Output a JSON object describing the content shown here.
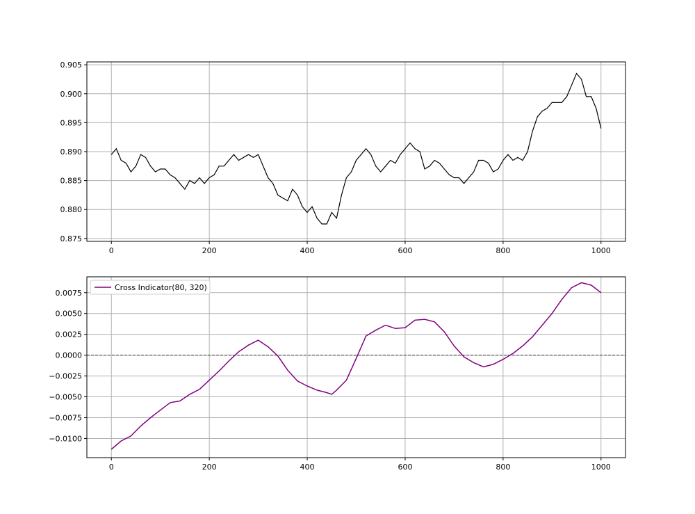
{
  "chart_data": [
    {
      "type": "line",
      "title": "",
      "xlabel": "",
      "ylabel": "",
      "grid": true,
      "xlim": [
        -50,
        1050
      ],
      "ylim": [
        0.8745,
        0.9055
      ],
      "xticks": [
        0,
        200,
        400,
        600,
        800,
        1000
      ],
      "xtick_labels": [
        "0",
        "200",
        "400",
        "600",
        "800",
        "1000"
      ],
      "yticks": [
        0.875,
        0.88,
        0.885,
        0.89,
        0.895,
        0.9,
        0.905
      ],
      "ytick_labels": [
        "0.875",
        "0.880",
        "0.885",
        "0.890",
        "0.895",
        "0.900",
        "0.905"
      ],
      "series": [
        {
          "color": "#000000",
          "x": [
            0,
            10,
            20,
            30,
            40,
            50,
            60,
            70,
            80,
            90,
            100,
            110,
            120,
            130,
            140,
            150,
            160,
            170,
            180,
            190,
            200,
            210,
            220,
            230,
            240,
            250,
            260,
            270,
            280,
            290,
            300,
            310,
            320,
            330,
            340,
            350,
            360,
            370,
            380,
            390,
            400,
            410,
            420,
            430,
            440,
            450,
            460,
            470,
            480,
            490,
            500,
            510,
            520,
            530,
            540,
            550,
            560,
            570,
            580,
            590,
            600,
            610,
            620,
            630,
            640,
            650,
            660,
            670,
            680,
            690,
            700,
            710,
            720,
            730,
            740,
            750,
            760,
            770,
            780,
            790,
            800,
            810,
            820,
            830,
            840,
            850,
            860,
            870,
            880,
            890,
            900,
            910,
            920,
            930,
            940,
            950,
            960,
            970,
            980,
            990,
            1000
          ],
          "y": [
            0.8895,
            0.8905,
            0.8885,
            0.888,
            0.8865,
            0.8875,
            0.8895,
            0.889,
            0.8875,
            0.8865,
            0.887,
            0.887,
            0.886,
            0.8855,
            0.8845,
            0.8835,
            0.885,
            0.8845,
            0.8855,
            0.8845,
            0.8855,
            0.886,
            0.8875,
            0.8875,
            0.8885,
            0.8895,
            0.8885,
            0.889,
            0.8895,
            0.889,
            0.8895,
            0.8875,
            0.8855,
            0.8845,
            0.8825,
            0.882,
            0.8815,
            0.8835,
            0.8825,
            0.8805,
            0.8795,
            0.8805,
            0.8785,
            0.8775,
            0.8775,
            0.8795,
            0.8785,
            0.8825,
            0.8855,
            0.8865,
            0.8885,
            0.8895,
            0.8905,
            0.8895,
            0.8875,
            0.8865,
            0.8875,
            0.8885,
            0.888,
            0.8895,
            0.8905,
            0.8915,
            0.8905,
            0.89,
            0.887,
            0.8875,
            0.8885,
            0.888,
            0.887,
            0.886,
            0.8855,
            0.8855,
            0.8845,
            0.8855,
            0.8865,
            0.8885,
            0.8885,
            0.888,
            0.8865,
            0.887,
            0.8885,
            0.8895,
            0.8885,
            0.889,
            0.8885,
            0.89,
            0.8935,
            0.896,
            0.897,
            0.8975,
            0.8985,
            0.8985,
            0.8985,
            0.8995,
            0.9015,
            0.9035,
            0.9025,
            0.8995,
            0.8995,
            0.8975,
            0.894
          ]
        }
      ]
    },
    {
      "type": "line",
      "title": "",
      "xlabel": "",
      "ylabel": "",
      "grid": true,
      "xlim": [
        -50,
        1050
      ],
      "ylim": [
        -0.0123,
        0.0094
      ],
      "xticks": [
        0,
        200,
        400,
        600,
        800,
        1000
      ],
      "xtick_labels": [
        "0",
        "200",
        "400",
        "600",
        "800",
        "1000"
      ],
      "yticks": [
        -0.01,
        -0.0075,
        -0.005,
        -0.0025,
        0,
        0.0025,
        0.005,
        0.0075
      ],
      "ytick_labels": [
        "−0.0100",
        "−0.0075",
        "−0.0050",
        "−0.0025",
        "0.0000",
        "0.0025",
        "0.0050",
        "0.0075"
      ],
      "hline": {
        "y": 0,
        "color": "#333333",
        "style": "dashed"
      },
      "legend_position": "upper-left",
      "series": [
        {
          "name": "Cross Indicator(80, 320)",
          "color": "#800080",
          "x": [
            0,
            20,
            40,
            60,
            80,
            100,
            120,
            140,
            160,
            180,
            200,
            220,
            240,
            260,
            280,
            300,
            320,
            340,
            360,
            380,
            400,
            420,
            440,
            450,
            460,
            480,
            500,
            520,
            540,
            560,
            580,
            600,
            620,
            640,
            660,
            680,
            700,
            720,
            740,
            760,
            780,
            800,
            820,
            840,
            860,
            880,
            900,
            920,
            940,
            960,
            980,
            1000
          ],
          "y": [
            -0.0113,
            -0.0103,
            -0.0097,
            -0.0085,
            -0.0075,
            -0.0066,
            -0.0057,
            -0.0055,
            -0.0047,
            -0.0041,
            -0.003,
            -0.0019,
            -0.0007,
            0.0004,
            0.0012,
            0.0018,
            0.001,
            -0.0001,
            -0.0018,
            -0.0031,
            -0.0037,
            -0.0042,
            -0.0045,
            -0.0047,
            -0.0042,
            -0.003,
            -0.0004,
            0.0023,
            0.003,
            0.0036,
            0.0032,
            0.0033,
            0.0042,
            0.0043,
            0.004,
            0.0028,
            0.0011,
            -0.0002,
            -0.0009,
            -0.0014,
            -0.0011,
            -0.0005,
            0.0002,
            0.0011,
            0.0022,
            0.0036,
            0.005,
            0.0067,
            0.0081,
            0.0087,
            0.0084,
            0.0075
          ]
        }
      ]
    }
  ]
}
